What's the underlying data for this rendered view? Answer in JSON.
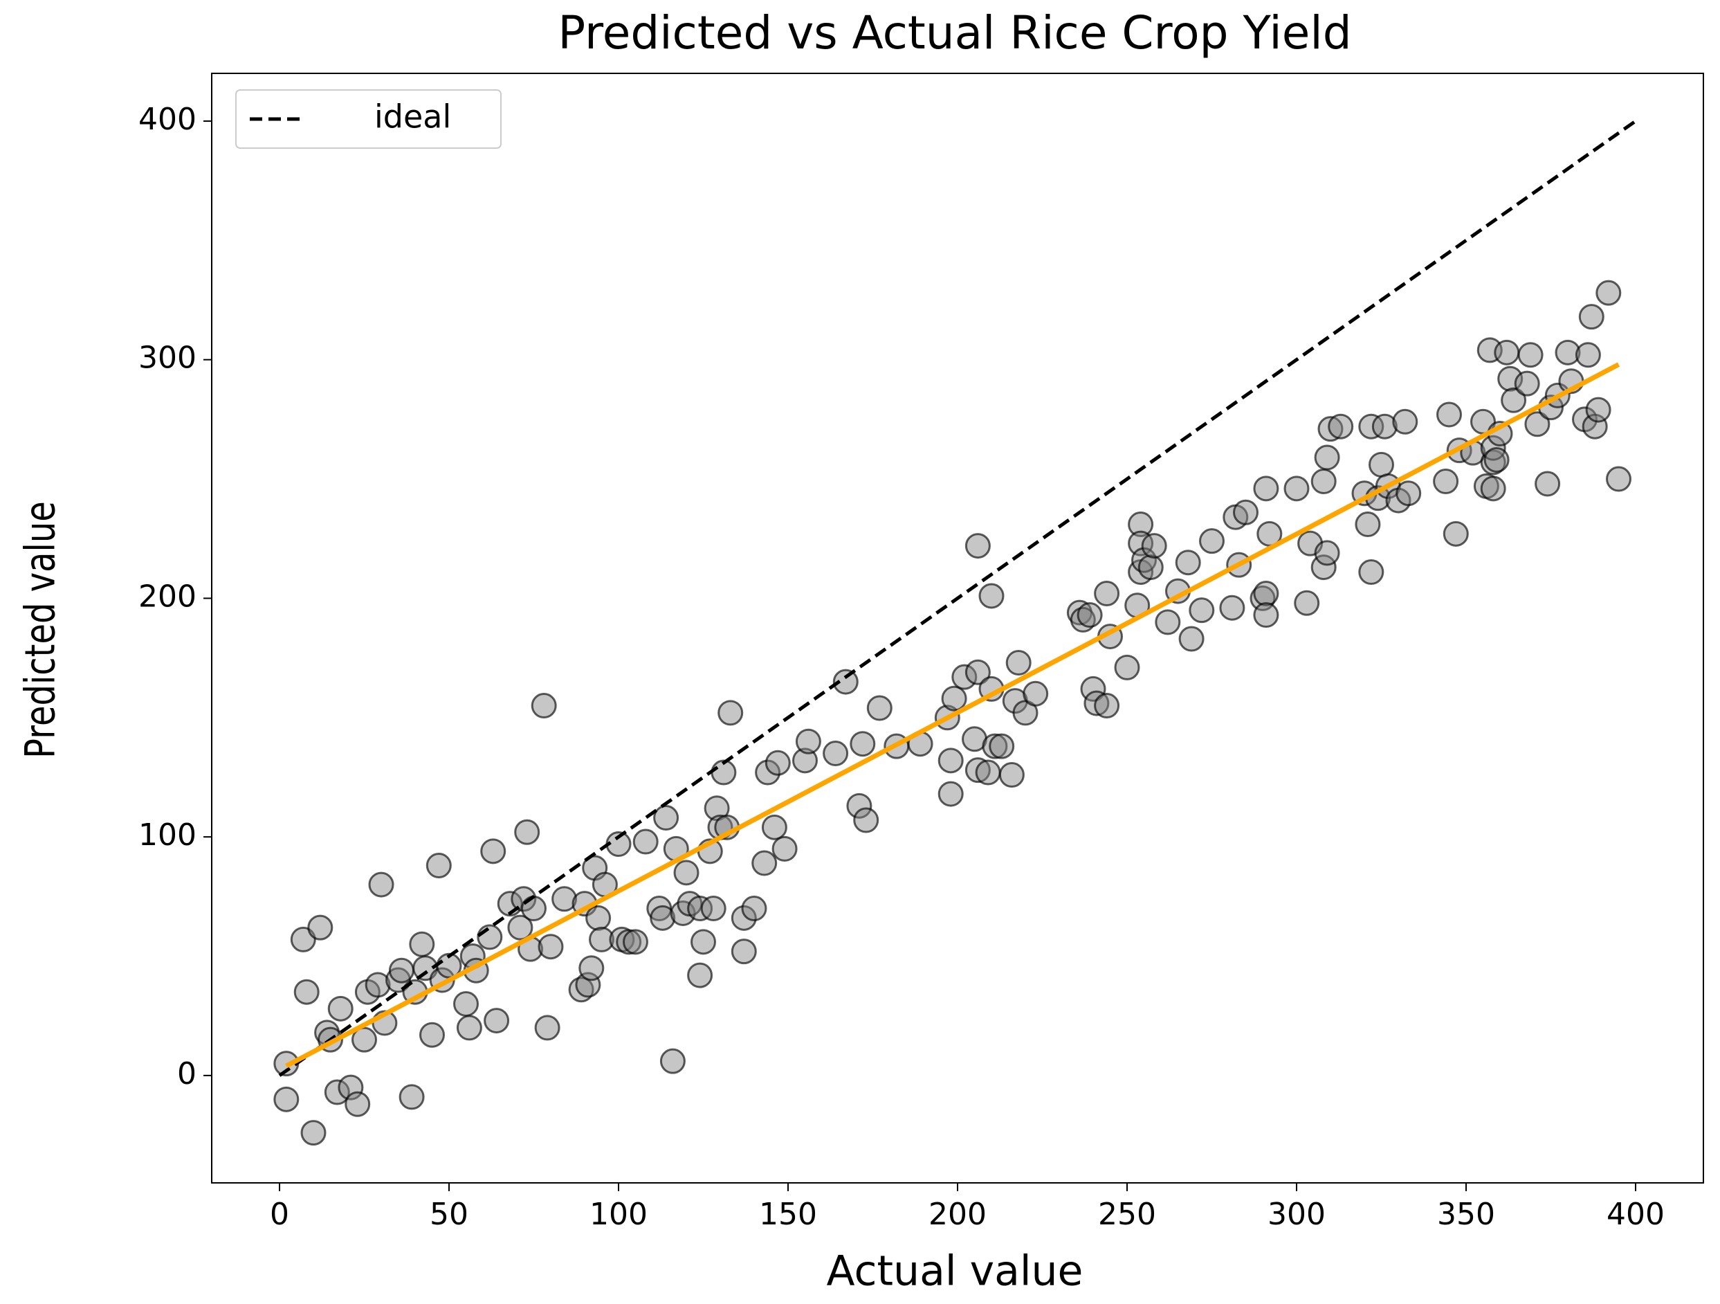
{
  "chart_data": {
    "type": "scatter",
    "title": "Predicted vs Actual Rice Crop Yield",
    "xlabel": "Actual value",
    "ylabel": "Predicted value",
    "xlim": [
      -20,
      420
    ],
    "ylim": [
      -45,
      420
    ],
    "xticks": [
      0,
      50,
      100,
      150,
      200,
      250,
      300,
      350,
      400
    ],
    "yticks": [
      0,
      100,
      200,
      300,
      400
    ],
    "grid": false,
    "legend": "upper left",
    "series": [
      {
        "color": "#808080",
        "edgecolor": "#000000",
        "alpha": 0.45,
        "marker": "o",
        "x": [
          2,
          2,
          10,
          7,
          8,
          12,
          14,
          15,
          18,
          17,
          21,
          23,
          25,
          26,
          29,
          30,
          31,
          35,
          36,
          39,
          40,
          42,
          43,
          45,
          47,
          48,
          50,
          55,
          56,
          57,
          58,
          62,
          63,
          64,
          68,
          71,
          72,
          73,
          74,
          75,
          78,
          79,
          80,
          84,
          89,
          90,
          91,
          92,
          93,
          94,
          95,
          96,
          100,
          101,
          103,
          105,
          108,
          112,
          113,
          114,
          116,
          117,
          119,
          120,
          121,
          124,
          124,
          125,
          127,
          128,
          129,
          130,
          131,
          132,
          133,
          137,
          137,
          140,
          143,
          144,
          146,
          147,
          149,
          155,
          156,
          164,
          167,
          171,
          172,
          173,
          177,
          182,
          189,
          197,
          198,
          198,
          199,
          202,
          205,
          206,
          206,
          206,
          209,
          210,
          210,
          211,
          213,
          216,
          217,
          218,
          220,
          223,
          236,
          237,
          239,
          240,
          241,
          244,
          244,
          245,
          250,
          253,
          254,
          254,
          254,
          255,
          257,
          258,
          262,
          265,
          268,
          269,
          272,
          275,
          281,
          282,
          283,
          285,
          290,
          291,
          291,
          291,
          292,
          300,
          303,
          304,
          308,
          308,
          309,
          309,
          310,
          313,
          320,
          321,
          322,
          322,
          324,
          325,
          326,
          327,
          330,
          332,
          333,
          344,
          345,
          347,
          348,
          352,
          355,
          356,
          357,
          358,
          358,
          358,
          359,
          360,
          362,
          363,
          364,
          368,
          369,
          371,
          374,
          375,
          377,
          380,
          381,
          385,
          386,
          387,
          388,
          389,
          392,
          395
        ],
        "values": [
          5,
          -10,
          -24,
          57,
          35,
          62,
          18,
          15,
          28,
          -7,
          -5,
          -12,
          15,
          35,
          38,
          80,
          22,
          40,
          44,
          -9,
          35,
          55,
          45,
          17,
          88,
          40,
          46,
          30,
          20,
          50,
          44,
          58,
          94,
          23,
          72,
          62,
          74,
          102,
          53,
          70,
          155,
          20,
          54,
          74,
          36,
          72,
          38,
          45,
          87,
          66,
          57,
          80,
          97,
          57,
          56,
          56,
          98,
          70,
          66,
          108,
          6,
          95,
          68,
          85,
          72,
          70,
          42,
          56,
          94,
          70,
          112,
          104,
          127,
          104,
          152,
          52,
          66,
          70,
          89,
          127,
          104,
          131,
          95,
          132,
          140,
          135,
          165,
          113,
          139,
          107,
          154,
          138,
          139,
          150,
          132,
          118,
          158,
          167,
          141,
          169,
          128,
          222,
          127,
          162,
          201,
          138,
          138,
          126,
          157,
          173,
          152,
          160,
          194,
          191,
          193,
          162,
          156,
          155,
          202,
          184,
          171,
          197,
          211,
          231,
          223,
          216,
          213,
          222,
          190,
          203,
          215,
          183,
          195,
          224,
          196,
          234,
          214,
          236,
          200,
          246,
          202,
          193,
          227,
          246,
          198,
          223,
          213,
          249,
          259,
          219,
          271,
          272,
          244,
          231,
          211,
          272,
          242,
          256,
          272,
          247,
          241,
          274,
          244,
          249,
          277,
          227,
          262,
          261,
          274,
          247,
          304,
          246,
          257,
          263,
          258,
          269,
          303,
          292,
          283,
          290,
          302,
          273,
          248,
          280,
          285,
          303,
          291,
          275,
          302,
          318,
          272,
          279,
          328,
          250
        ]
      },
      {
        "name": "ideal",
        "color": "#000000",
        "linestyle": "dashed",
        "x": [
          0,
          400
        ],
        "values": [
          0,
          400
        ]
      },
      {
        "color": "#ffa500",
        "linestyle": "solid",
        "x": [
          2,
          395
        ],
        "values": [
          4,
          298
        ]
      }
    ]
  }
}
